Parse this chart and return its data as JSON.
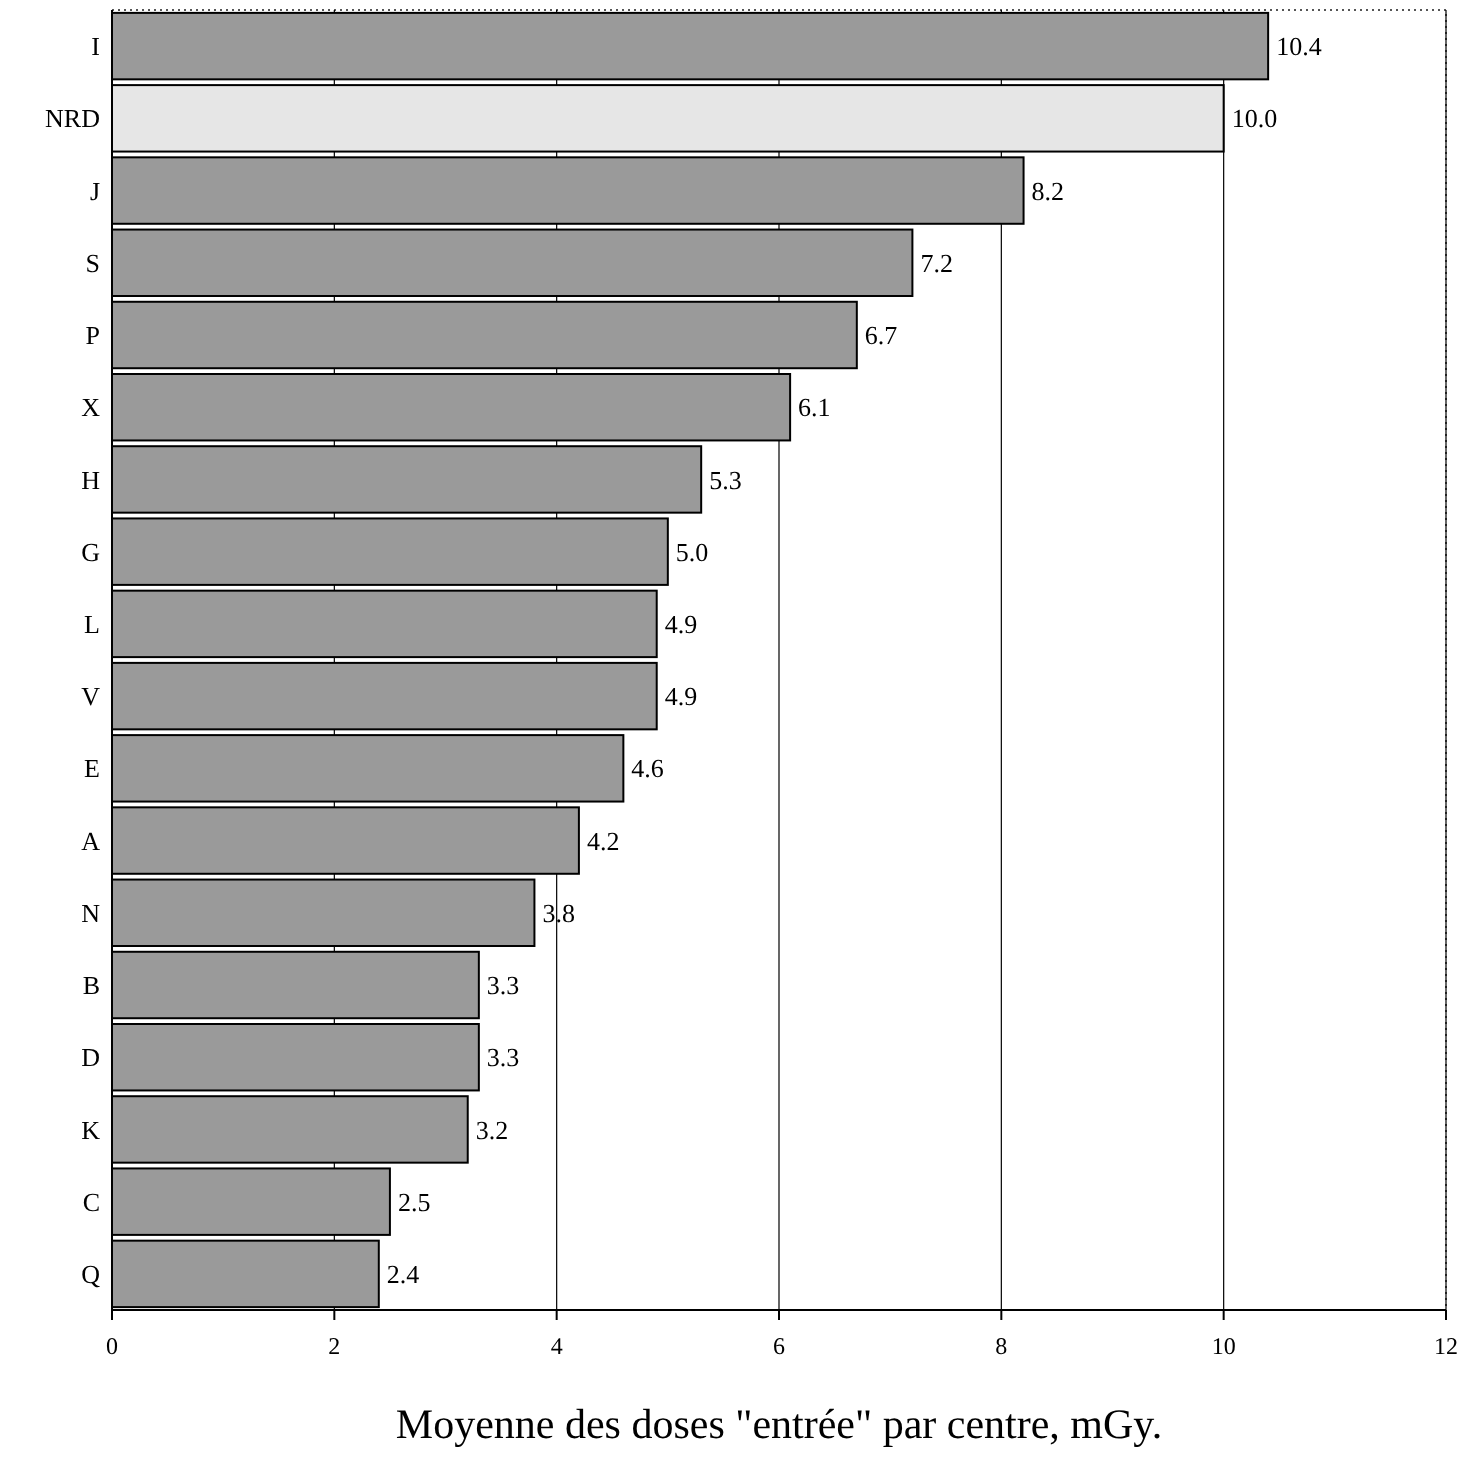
{
  "chart_data": {
    "type": "bar",
    "orientation": "horizontal",
    "xlabel": "Moyenne des doses \"entrée\" par centre, mGy.",
    "categories": [
      "I",
      "NRD",
      "J",
      "S",
      "P",
      "X",
      "H",
      "G",
      "L",
      "V",
      "E",
      "A",
      "N",
      "B",
      "D",
      "K",
      "C",
      "Q"
    ],
    "values": [
      10.4,
      10.0,
      8.2,
      7.2,
      6.7,
      6.1,
      5.3,
      5.0,
      4.9,
      4.9,
      4.6,
      4.2,
      3.8,
      3.3,
      3.3,
      3.2,
      2.5,
      2.4
    ],
    "value_labels": [
      "10.4",
      "10.0",
      "8.2",
      "7.2",
      "6.7",
      "6.1",
      "5.3",
      "5.0",
      "4.9",
      "4.9",
      "4.6",
      "4.2",
      "3.8",
      "3.3",
      "3.3",
      "3.2",
      "2.5",
      "2.4"
    ],
    "colors": [
      "#9a9a9a",
      "#e6e6e6",
      "#9a9a9a",
      "#9a9a9a",
      "#9a9a9a",
      "#9a9a9a",
      "#9a9a9a",
      "#9a9a9a",
      "#9a9a9a",
      "#9a9a9a",
      "#9a9a9a",
      "#9a9a9a",
      "#9a9a9a",
      "#9a9a9a",
      "#9a9a9a",
      "#9a9a9a",
      "#9a9a9a",
      "#9a9a9a"
    ],
    "xlim": [
      0,
      12
    ],
    "xticks": [
      0,
      2,
      4,
      6,
      8,
      10,
      12
    ],
    "grid": "x"
  }
}
